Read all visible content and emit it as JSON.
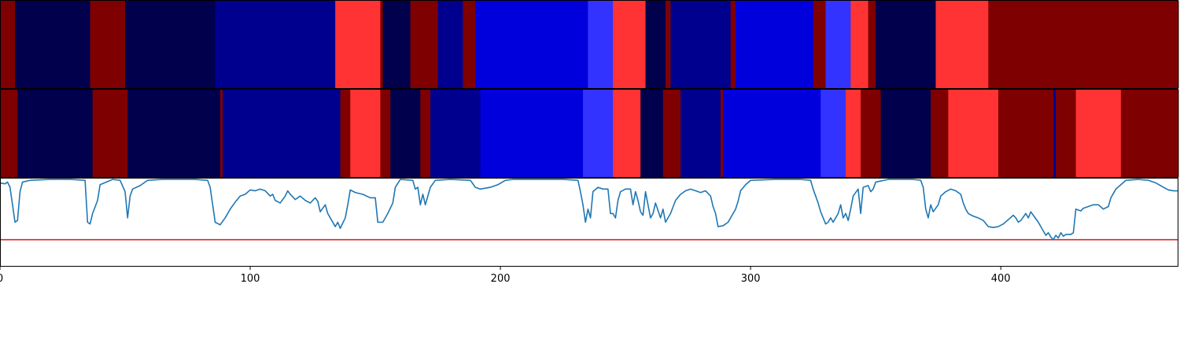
{
  "chart_data": {
    "type": "heatmap",
    "title": "",
    "xlabel": "",
    "ylabel": "",
    "xlim": [
      0,
      471
    ],
    "x_ticks": [
      0,
      100,
      200,
      300,
      400
    ],
    "x_tick_labels": [
      "0",
      "100",
      "200",
      "300",
      "400"
    ],
    "colors": {
      "0": "#00004d",
      "1": "#00008f",
      "2": "#0000dd",
      "3": "#3333ff",
      "4": "#ff3333",
      "5": "#7f0000"
    },
    "state_rows": [
      {
        "name": "",
        "segments": [
          [
            0,
            6,
            5
          ],
          [
            6,
            36,
            0
          ],
          [
            36,
            50,
            5
          ],
          [
            50,
            86,
            0
          ],
          [
            86,
            134,
            1
          ],
          [
            134,
            152,
            4
          ],
          [
            152,
            153,
            5
          ],
          [
            153,
            164,
            0
          ],
          [
            164,
            175,
            5
          ],
          [
            175,
            185,
            1
          ],
          [
            185,
            190,
            5
          ],
          [
            190,
            235,
            2
          ],
          [
            235,
            245,
            3
          ],
          [
            245,
            258,
            4
          ],
          [
            258,
            266,
            0
          ],
          [
            266,
            268,
            5
          ],
          [
            268,
            292,
            1
          ],
          [
            292,
            294,
            5
          ],
          [
            294,
            325,
            2
          ],
          [
            325,
            330,
            5
          ],
          [
            330,
            340,
            3
          ],
          [
            340,
            347,
            4
          ],
          [
            347,
            350,
            5
          ],
          [
            350,
            374,
            0
          ],
          [
            374,
            395,
            4
          ],
          [
            395,
            471,
            5
          ]
        ]
      },
      {
        "name": "",
        "segments": [
          [
            0,
            7,
            5
          ],
          [
            7,
            37,
            0
          ],
          [
            37,
            51,
            5
          ],
          [
            51,
            88,
            0
          ],
          [
            88,
            89,
            5
          ],
          [
            89,
            136,
            1
          ],
          [
            136,
            140,
            5
          ],
          [
            140,
            152,
            4
          ],
          [
            152,
            156,
            5
          ],
          [
            156,
            168,
            0
          ],
          [
            168,
            172,
            5
          ],
          [
            172,
            192,
            1
          ],
          [
            192,
            233,
            2
          ],
          [
            233,
            245,
            3
          ],
          [
            245,
            256,
            4
          ],
          [
            256,
            265,
            0
          ],
          [
            265,
            272,
            5
          ],
          [
            272,
            288,
            1
          ],
          [
            288,
            289,
            5
          ],
          [
            289,
            328,
            2
          ],
          [
            328,
            338,
            3
          ],
          [
            338,
            344,
            4
          ],
          [
            344,
            352,
            5
          ],
          [
            352,
            372,
            0
          ],
          [
            372,
            379,
            5
          ],
          [
            379,
            399,
            4
          ],
          [
            399,
            421,
            5
          ],
          [
            421,
            422,
            1
          ],
          [
            422,
            430,
            5
          ],
          [
            430,
            448,
            4
          ],
          [
            448,
            471,
            5
          ]
        ]
      }
    ],
    "line": {
      "name": "",
      "color": "#1f77b4",
      "ylim": [
        0,
        1
      ],
      "threshold": 0.3,
      "threshold_color": "#d62728",
      "points": [
        [
          0,
          0.95
        ],
        [
          2,
          0.94
        ],
        [
          3,
          0.96
        ],
        [
          4,
          0.9
        ],
        [
          5,
          0.7
        ],
        [
          6,
          0.5
        ],
        [
          7,
          0.52
        ],
        [
          8,
          0.85
        ],
        [
          9,
          0.96
        ],
        [
          12,
          0.98
        ],
        [
          20,
          0.99
        ],
        [
          28,
          0.99
        ],
        [
          34,
          0.98
        ],
        [
          35,
          0.5
        ],
        [
          36,
          0.48
        ],
        [
          37,
          0.6
        ],
        [
          39,
          0.75
        ],
        [
          40,
          0.93
        ],
        [
          45,
          0.99
        ],
        [
          48,
          0.98
        ],
        [
          50,
          0.85
        ],
        [
          51,
          0.55
        ],
        [
          52,
          0.8
        ],
        [
          53,
          0.88
        ],
        [
          56,
          0.92
        ],
        [
          59,
          0.98
        ],
        [
          65,
          0.99
        ],
        [
          72,
          0.99
        ],
        [
          78,
          0.99
        ],
        [
          83,
          0.98
        ],
        [
          84,
          0.9
        ],
        [
          85,
          0.7
        ],
        [
          86,
          0.5
        ],
        [
          88,
          0.47
        ],
        [
          90,
          0.55
        ],
        [
          92,
          0.65
        ],
        [
          94,
          0.73
        ],
        [
          96,
          0.8
        ],
        [
          98,
          0.82
        ],
        [
          100,
          0.87
        ],
        [
          102,
          0.86
        ],
        [
          104,
          0.88
        ],
        [
          106,
          0.86
        ],
        [
          108,
          0.8
        ],
        [
          109,
          0.82
        ],
        [
          110,
          0.75
        ],
        [
          112,
          0.72
        ],
        [
          114,
          0.8
        ],
        [
          115,
          0.86
        ],
        [
          116,
          0.82
        ],
        [
          118,
          0.76
        ],
        [
          120,
          0.8
        ],
        [
          122,
          0.75
        ],
        [
          124,
          0.72
        ],
        [
          126,
          0.78
        ],
        [
          127,
          0.74
        ],
        [
          128,
          0.62
        ],
        [
          130,
          0.7
        ],
        [
          131,
          0.6
        ],
        [
          132,
          0.55
        ],
        [
          134,
          0.45
        ],
        [
          135,
          0.5
        ],
        [
          136,
          0.43
        ],
        [
          138,
          0.55
        ],
        [
          139,
          0.7
        ],
        [
          140,
          0.87
        ],
        [
          142,
          0.84
        ],
        [
          145,
          0.82
        ],
        [
          148,
          0.78
        ],
        [
          150,
          0.78
        ],
        [
          151,
          0.5
        ],
        [
          153,
          0.5
        ],
        [
          155,
          0.6
        ],
        [
          157,
          0.72
        ],
        [
          158,
          0.9
        ],
        [
          160,
          0.99
        ],
        [
          165,
          0.98
        ],
        [
          166,
          0.88
        ],
        [
          167,
          0.9
        ],
        [
          168,
          0.7
        ],
        [
          169,
          0.82
        ],
        [
          170,
          0.7
        ],
        [
          172,
          0.9
        ],
        [
          174,
          0.98
        ],
        [
          180,
          0.99
        ],
        [
          188,
          0.98
        ],
        [
          190,
          0.9
        ],
        [
          192,
          0.88
        ],
        [
          196,
          0.9
        ],
        [
          199,
          0.93
        ],
        [
          202,
          0.98
        ],
        [
          205,
          0.99
        ],
        [
          215,
          0.99
        ],
        [
          225,
          0.99
        ],
        [
          231,
          0.98
        ],
        [
          232,
          0.85
        ],
        [
          233,
          0.7
        ],
        [
          234,
          0.5
        ],
        [
          235,
          0.65
        ],
        [
          236,
          0.55
        ],
        [
          237,
          0.85
        ],
        [
          239,
          0.9
        ],
        [
          241,
          0.88
        ],
        [
          243,
          0.88
        ],
        [
          244,
          0.6
        ],
        [
          245,
          0.6
        ],
        [
          246,
          0.55
        ],
        [
          247,
          0.75
        ],
        [
          248,
          0.85
        ],
        [
          250,
          0.88
        ],
        [
          252,
          0.88
        ],
        [
          253,
          0.7
        ],
        [
          254,
          0.85
        ],
        [
          255,
          0.75
        ],
        [
          256,
          0.62
        ],
        [
          257,
          0.58
        ],
        [
          258,
          0.85
        ],
        [
          259,
          0.7
        ],
        [
          260,
          0.55
        ],
        [
          261,
          0.6
        ],
        [
          262,
          0.72
        ],
        [
          264,
          0.55
        ],
        [
          265,
          0.65
        ],
        [
          266,
          0.5
        ],
        [
          268,
          0.6
        ],
        [
          270,
          0.75
        ],
        [
          272,
          0.82
        ],
        [
          274,
          0.86
        ],
        [
          276,
          0.88
        ],
        [
          278,
          0.86
        ],
        [
          280,
          0.84
        ],
        [
          282,
          0.86
        ],
        [
          284,
          0.8
        ],
        [
          285,
          0.68
        ],
        [
          286,
          0.6
        ],
        [
          287,
          0.45
        ],
        [
          289,
          0.46
        ],
        [
          291,
          0.5
        ],
        [
          292,
          0.55
        ],
        [
          294,
          0.65
        ],
        [
          295,
          0.74
        ],
        [
          296,
          0.86
        ],
        [
          298,
          0.93
        ],
        [
          300,
          0.98
        ],
        [
          310,
          0.99
        ],
        [
          320,
          0.99
        ],
        [
          324,
          0.98
        ],
        [
          325,
          0.88
        ],
        [
          326,
          0.8
        ],
        [
          327,
          0.72
        ],
        [
          328,
          0.62
        ],
        [
          329,
          0.55
        ],
        [
          330,
          0.48
        ],
        [
          331,
          0.5
        ],
        [
          332,
          0.55
        ],
        [
          333,
          0.5
        ],
        [
          334,
          0.55
        ],
        [
          335,
          0.6
        ],
        [
          336,
          0.7
        ],
        [
          337,
          0.55
        ],
        [
          338,
          0.6
        ],
        [
          339,
          0.52
        ],
        [
          340,
          0.65
        ],
        [
          341,
          0.8
        ],
        [
          343,
          0.88
        ],
        [
          344,
          0.6
        ],
        [
          345,
          0.9
        ],
        [
          347,
          0.92
        ],
        [
          348,
          0.85
        ],
        [
          349,
          0.88
        ],
        [
          350,
          0.96
        ],
        [
          355,
          0.99
        ],
        [
          365,
          0.99
        ],
        [
          368,
          0.98
        ],
        [
          369,
          0.9
        ],
        [
          370,
          0.65
        ],
        [
          371,
          0.55
        ],
        [
          372,
          0.7
        ],
        [
          373,
          0.62
        ],
        [
          375,
          0.7
        ],
        [
          376,
          0.8
        ],
        [
          378,
          0.85
        ],
        [
          380,
          0.88
        ],
        [
          382,
          0.86
        ],
        [
          384,
          0.82
        ],
        [
          385,
          0.72
        ],
        [
          386,
          0.65
        ],
        [
          387,
          0.6
        ],
        [
          389,
          0.57
        ],
        [
          391,
          0.55
        ],
        [
          393,
          0.52
        ],
        [
          395,
          0.45
        ],
        [
          397,
          0.44
        ],
        [
          399,
          0.45
        ],
        [
          401,
          0.48
        ],
        [
          403,
          0.53
        ],
        [
          405,
          0.58
        ],
        [
          406,
          0.55
        ],
        [
          407,
          0.5
        ],
        [
          408,
          0.52
        ],
        [
          410,
          0.6
        ],
        [
          411,
          0.55
        ],
        [
          412,
          0.62
        ],
        [
          413,
          0.58
        ],
        [
          415,
          0.5
        ],
        [
          417,
          0.4
        ],
        [
          418,
          0.35
        ],
        [
          419,
          0.38
        ],
        [
          420,
          0.33
        ],
        [
          421,
          0.3
        ],
        [
          422,
          0.35
        ],
        [
          423,
          0.32
        ],
        [
          424,
          0.38
        ],
        [
          425,
          0.34
        ],
        [
          426,
          0.36
        ],
        [
          428,
          0.36
        ],
        [
          429,
          0.38
        ],
        [
          430,
          0.65
        ],
        [
          432,
          0.63
        ],
        [
          433,
          0.66
        ],
        [
          435,
          0.68
        ],
        [
          437,
          0.7
        ],
        [
          439,
          0.7
        ],
        [
          441,
          0.65
        ],
        [
          443,
          0.68
        ],
        [
          444,
          0.78
        ],
        [
          446,
          0.88
        ],
        [
          448,
          0.93
        ],
        [
          450,
          0.98
        ],
        [
          455,
          0.99
        ],
        [
          459,
          0.98
        ],
        [
          462,
          0.95
        ],
        [
          465,
          0.9
        ],
        [
          467,
          0.87
        ],
        [
          469,
          0.86
        ],
        [
          471,
          0.86
        ]
      ]
    }
  }
}
